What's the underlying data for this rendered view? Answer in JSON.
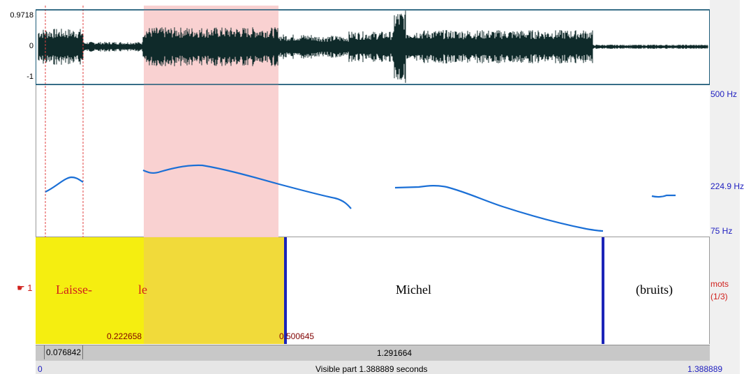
{
  "waveform": {
    "y_labels": {
      "top": "0.9718",
      "mid": "0",
      "bottom": "-1"
    }
  },
  "pitch": {
    "freq_labels": {
      "top": "500 Hz",
      "mid": "224.9 Hz",
      "bottom": "75 Hz"
    }
  },
  "tier": {
    "marker": "☛ 1",
    "name": "mots",
    "count": "(1/3)",
    "words": [
      "Laisse-",
      "le",
      "Michel",
      "(bruits)"
    ],
    "selection_start": "0.222658",
    "boundary_time": "0.500645"
  },
  "ruler": {
    "left_segment": "0.076842",
    "right_segment": "1.291664"
  },
  "footer": {
    "start": "0",
    "visible_text": "Visible part 1.388889 seconds",
    "end": "1.388889"
  },
  "colors": {
    "selection": "#f9cfcf",
    "interval_highlight": "#f5ee10",
    "waveform": "#0f2a2a",
    "pitch_line": "#1a6fd6",
    "boundary": "#1b24b8",
    "frame": "#1d5b78"
  }
}
